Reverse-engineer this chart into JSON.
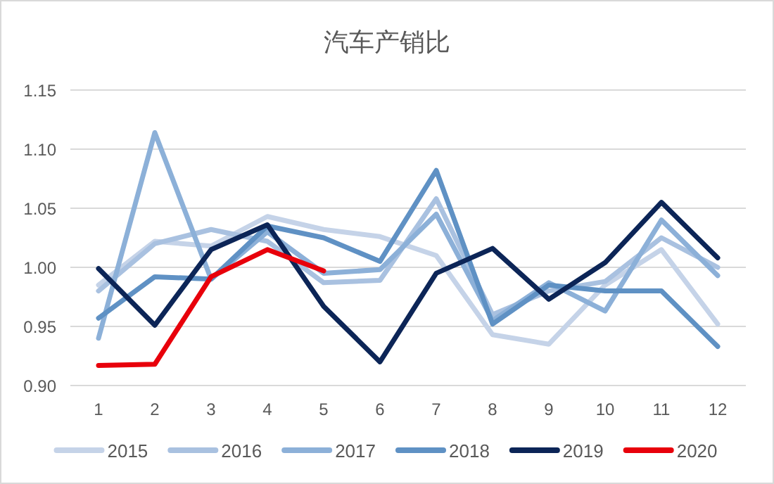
{
  "chart_data": {
    "type": "line",
    "title": "汽车产销比",
    "categories": [
      "1",
      "2",
      "3",
      "4",
      "5",
      "6",
      "7",
      "8",
      "9",
      "10",
      "11",
      "12"
    ],
    "series": [
      {
        "name": "2015",
        "color": "#c5d3e8",
        "values": [
          0.985,
          1.022,
          1.018,
          1.043,
          1.032,
          1.026,
          1.01,
          0.943,
          0.935,
          0.985,
          1.015,
          0.952
        ]
      },
      {
        "name": "2016",
        "color": "#a9c1e0",
        "values": [
          0.98,
          1.02,
          1.032,
          1.022,
          0.987,
          0.989,
          1.058,
          0.96,
          0.98,
          0.988,
          1.025,
          1.0
        ]
      },
      {
        "name": "2017",
        "color": "#8cb0d8",
        "values": [
          0.94,
          1.114,
          0.99,
          1.03,
          0.995,
          0.998,
          1.045,
          0.955,
          0.987,
          0.963,
          1.04,
          0.993
        ]
      },
      {
        "name": "2018",
        "color": "#5f91c4",
        "values": [
          0.957,
          0.992,
          0.99,
          1.035,
          1.025,
          1.005,
          1.082,
          0.952,
          0.985,
          0.98,
          0.98,
          0.933
        ]
      },
      {
        "name": "2019",
        "color": "#0c2557",
        "values": [
          0.999,
          0.951,
          1.015,
          1.036,
          0.967,
          0.92,
          0.995,
          1.016,
          0.973,
          1.004,
          1.055,
          1.008
        ]
      },
      {
        "name": "2020",
        "color": "#e8000b",
        "values": [
          0.917,
          0.918,
          0.992,
          1.015,
          0.997,
          null,
          null,
          null,
          null,
          null,
          null,
          null
        ]
      }
    ],
    "ylim": [
      0.9,
      1.15
    ],
    "yticks": [
      {
        "value": 0.9,
        "label": "0.90"
      },
      {
        "value": 0.95,
        "label": "0.95"
      },
      {
        "value": 1.0,
        "label": "1.00"
      },
      {
        "value": 1.05,
        "label": "1.05"
      },
      {
        "value": 1.1,
        "label": "1.10"
      },
      {
        "value": 1.15,
        "label": "1.15"
      }
    ],
    "grid": "y",
    "legend": "bottom"
  }
}
